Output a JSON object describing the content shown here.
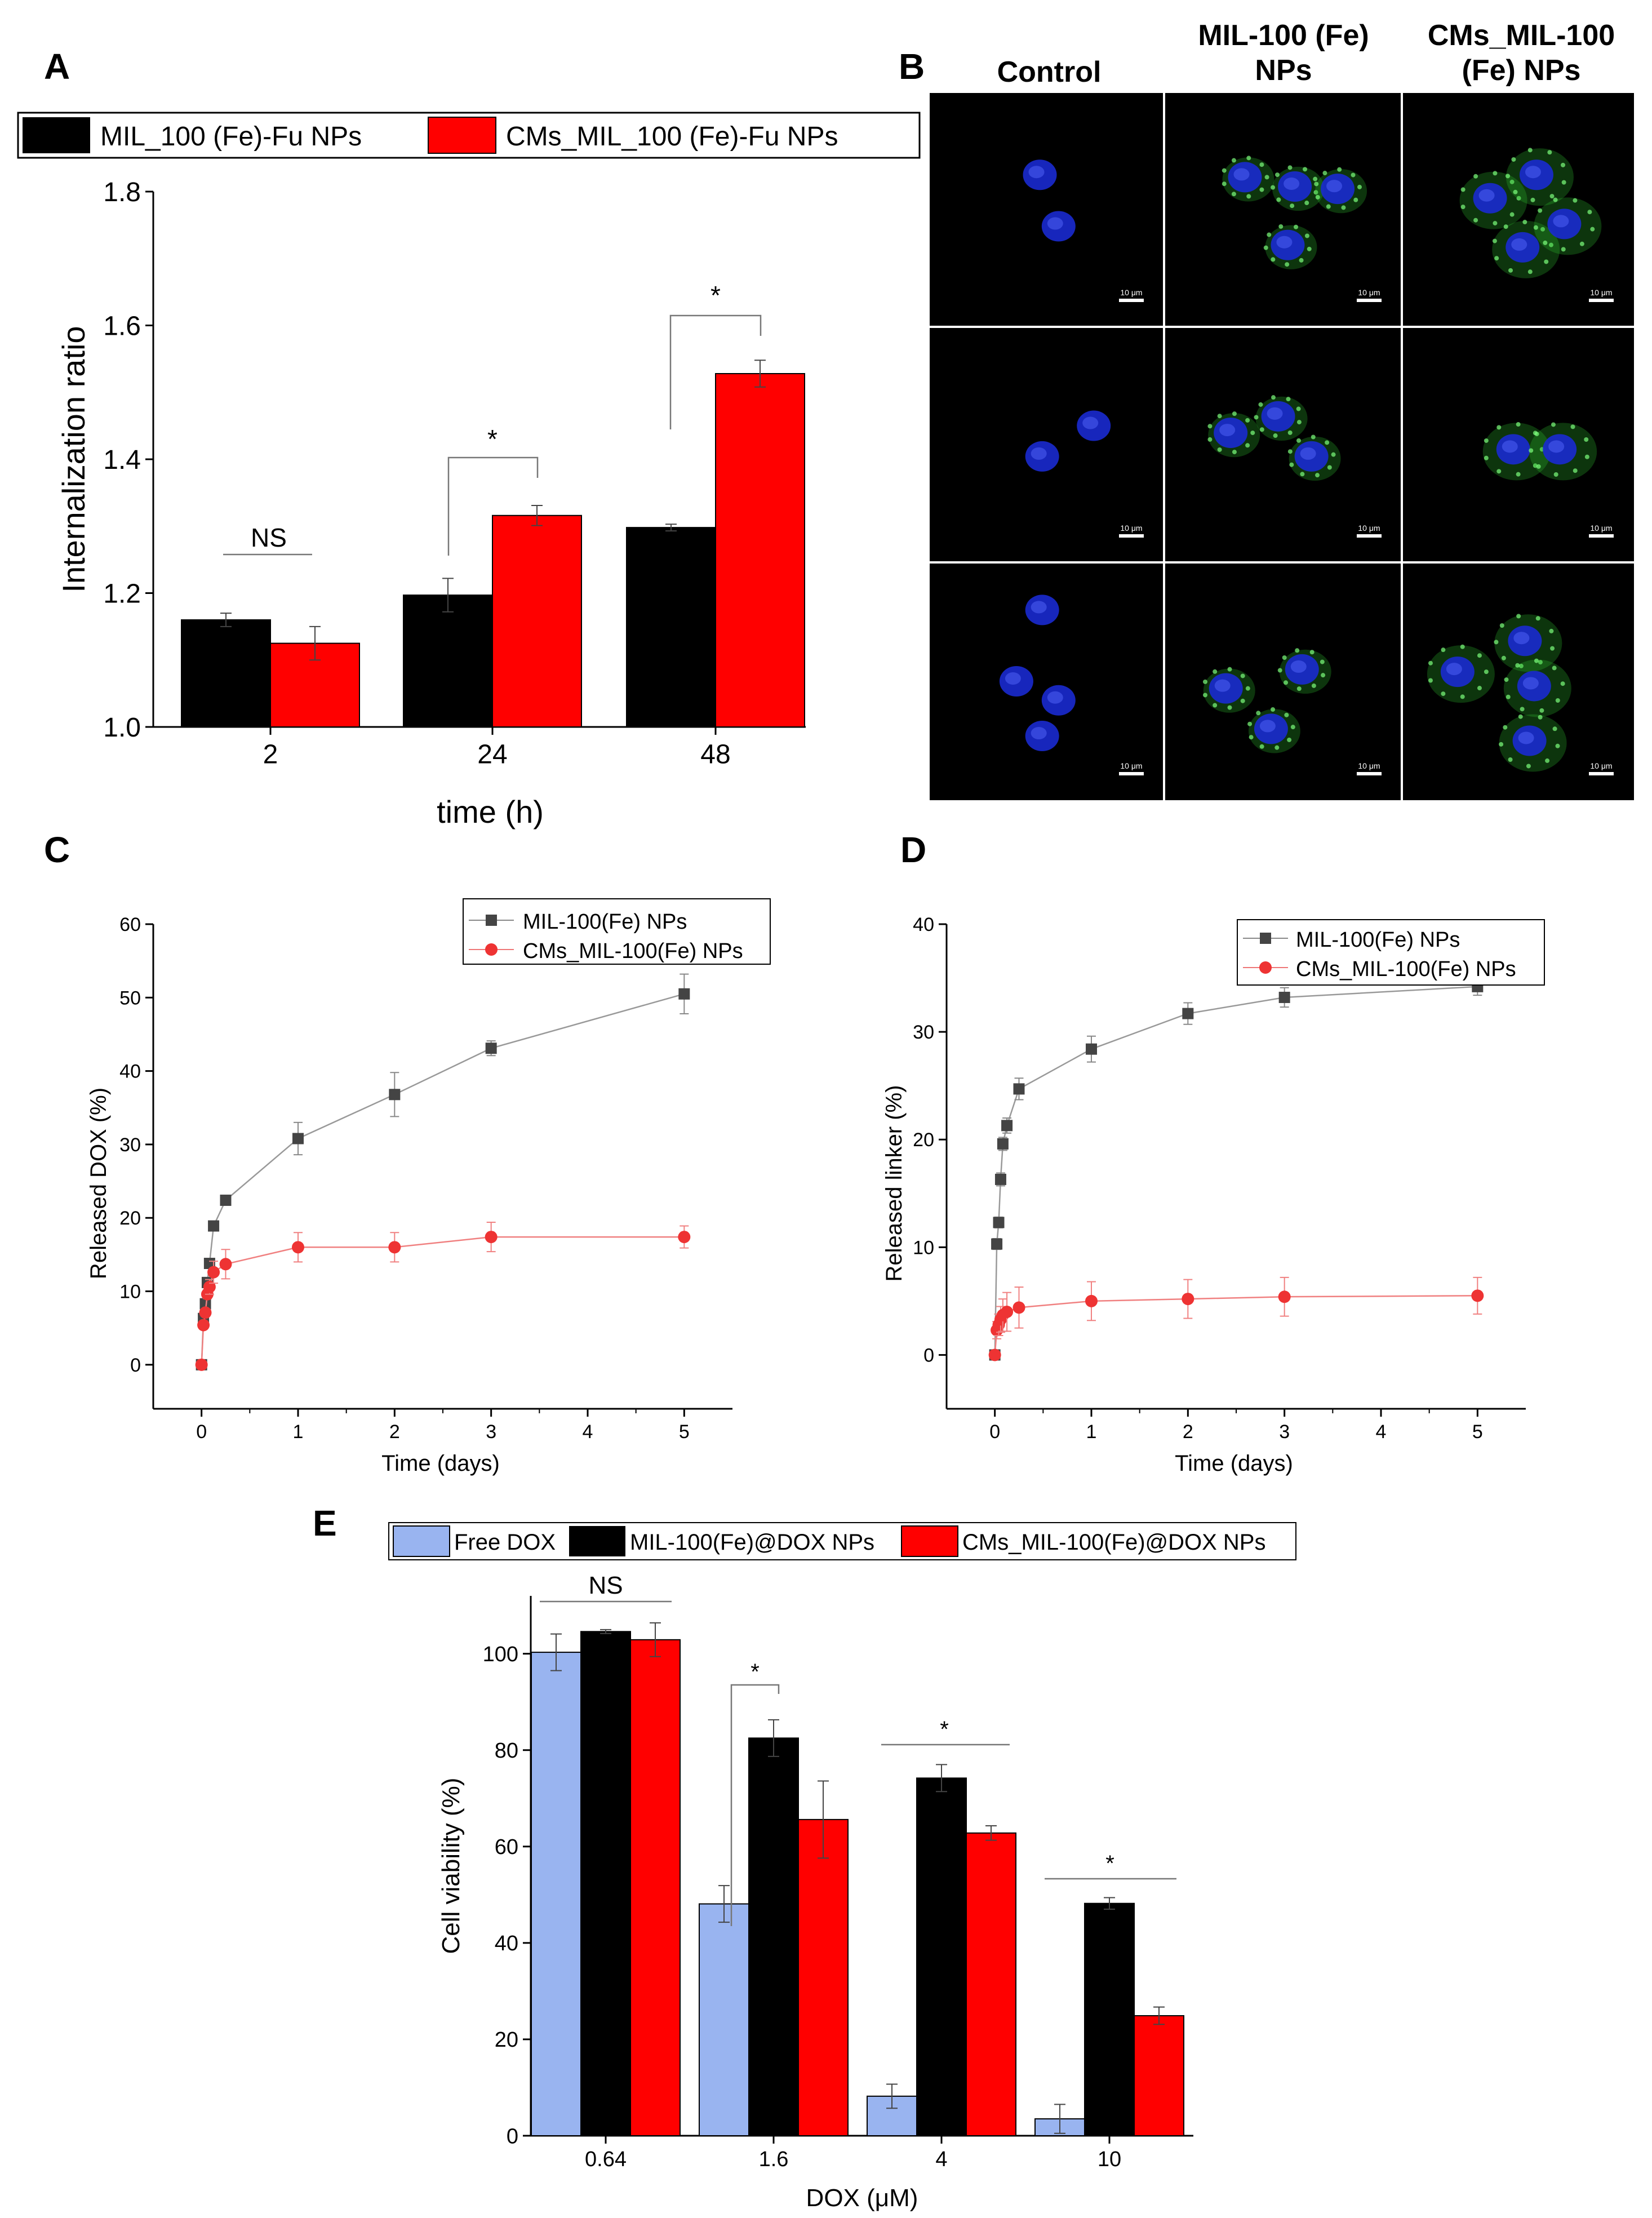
{
  "panels": {
    "a": {
      "letter": "A",
      "chart_data": {
        "type": "bar",
        "title": "",
        "xlabel": "time (h)",
        "ylabel": "Internalization ratio",
        "ylim": [
          1.0,
          1.8
        ],
        "yticks": [
          "1.0",
          "1.2",
          "1.4",
          "1.6",
          "1.8"
        ],
        "categories": [
          "2",
          "24",
          "48"
        ],
        "series": [
          {
            "name": "MIL_100 (Fe)-Fu NPs",
            "color": "#000000",
            "values": [
              1.16,
              1.197,
              1.298
            ],
            "errors": [
              0.01,
              0.025,
              0.005
            ]
          },
          {
            "name": "CMs_MIL_100 (Fe)-Fu NPs",
            "color": "#ff0000",
            "values": [
              1.125,
              1.316,
              1.528
            ],
            "errors": [
              0.025,
              0.015,
              0.02
            ]
          }
        ],
        "annotations": [
          "NS",
          "*",
          "*"
        ],
        "legend": "top"
      }
    },
    "b": {
      "letter": "B",
      "column_headers": [
        "Control",
        "MIL-100 (Fe)\nNPs",
        "CMs_MIL-100\n(Fe) NPs"
      ],
      "scale_bar_label": "10 μm",
      "nucleus_color": "#1a2ad0",
      "nanoparticle_color": "#2fbf2f"
    },
    "c": {
      "letter": "C",
      "chart_data": {
        "type": "line",
        "xlabel": "Time (days)",
        "ylabel": "Released DOX (%)",
        "xlim": [
          -0.5,
          5.5
        ],
        "ylim": [
          -6,
          60
        ],
        "xticks": [
          "0",
          "1",
          "2",
          "3",
          "4",
          "5"
        ],
        "yticks": [
          "0",
          "10",
          "20",
          "30",
          "40",
          "50",
          "60"
        ],
        "series": [
          {
            "name": "MIL-100(Fe) NPs",
            "color": "#444444",
            "marker": "square",
            "x": [
              0,
              0.02,
              0.04,
              0.06,
              0.083,
              0.125,
              0.25,
              1,
              2,
              3,
              5
            ],
            "y": [
              0,
              6.3,
              8.3,
              11.2,
              13.8,
              18.9,
              22.4,
              30.8,
              36.8,
              43.1,
              50.5
            ],
            "err": [
              0,
              0.3,
              0.3,
              0.4,
              0.4,
              0.5,
              0.5,
              2.2,
              3.0,
              1.0,
              2.7
            ]
          },
          {
            "name": "CMs_MIL-100(Fe) NPs",
            "color": "#ee3333",
            "marker": "circle",
            "x": [
              0,
              0.02,
              0.04,
              0.06,
              0.083,
              0.125,
              0.25,
              1,
              2,
              3,
              5
            ],
            "y": [
              0,
              5.4,
              7.1,
              9.6,
              10.6,
              12.6,
              13.7,
              16.0,
              16.0,
              17.4,
              17.4
            ],
            "err": [
              0,
              0.4,
              0.4,
              0.6,
              1.0,
              1.5,
              2.0,
              2.0,
              2.0,
              2.0,
              1.5
            ]
          }
        ],
        "legend": "top-right"
      }
    },
    "d": {
      "letter": "D",
      "chart_data": {
        "type": "line",
        "xlabel": "Time (days)",
        "ylabel": "Released linker (%)",
        "xlim": [
          -0.5,
          5.5
        ],
        "ylim": [
          -5,
          40
        ],
        "xticks": [
          "0",
          "1",
          "2",
          "3",
          "4",
          "5"
        ],
        "yticks": [
          "0",
          "10",
          "20",
          "30",
          "40"
        ],
        "series": [
          {
            "name": "MIL-100(Fe) NPs",
            "color": "#444444",
            "marker": "square",
            "x": [
              0,
              0.02,
              0.04,
              0.06,
              0.083,
              0.125,
              0.25,
              1,
              2,
              3,
              5
            ],
            "y": [
              0,
              10.3,
              12.3,
              16.3,
              19.6,
              21.3,
              24.7,
              28.4,
              31.7,
              33.2,
              34.2
            ],
            "err": [
              0,
              0.5,
              0.5,
              0.6,
              0.6,
              0.7,
              1.0,
              1.2,
              1.0,
              0.9,
              0.8
            ]
          },
          {
            "name": "CMs_MIL-100(Fe) NPs",
            "color": "#ee3333",
            "marker": "circle",
            "x": [
              0,
              0.02,
              0.04,
              0.06,
              0.083,
              0.125,
              0.25,
              1,
              2,
              3,
              5
            ],
            "y": [
              0,
              2.3,
              2.8,
              3.3,
              3.7,
              4.0,
              4.4,
              5.0,
              5.2,
              5.4,
              5.5
            ],
            "err": [
              0,
              0.8,
              1.0,
              1.2,
              1.5,
              1.8,
              1.9,
              1.8,
              1.8,
              1.8,
              1.7
            ]
          }
        ],
        "legend": "top-right"
      }
    },
    "e": {
      "letter": "E",
      "chart_data": {
        "type": "bar",
        "xlabel": "DOX (μM)",
        "ylabel": "Cell viability (%)",
        "ylim": [
          0,
          112
        ],
        "yticks": [
          "0",
          "20",
          "40",
          "60",
          "80",
          "100"
        ],
        "categories": [
          "0.64",
          "1.6",
          "4",
          "10"
        ],
        "series": [
          {
            "name": "Free DOX",
            "color": "#99b4f0",
            "values": [
              100.3,
              48.1,
              8.2,
              3.5
            ],
            "errors": [
              3.8,
              3.8,
              2.5,
              3.0
            ]
          },
          {
            "name": "MIL-100(Fe)@DOX NPs",
            "color": "#000000",
            "values": [
              104.6,
              82.5,
              74.2,
              48.2
            ],
            "errors": [
              0.4,
              3.8,
              2.8,
              1.2
            ]
          },
          {
            "name": "CMs_MIL-100(Fe)@DOX NPs",
            "color": "#ff0000",
            "values": [
              102.9,
              65.6,
              62.8,
              24.9
            ],
            "errors": [
              3.5,
              8.0,
              1.5,
              1.8
            ]
          }
        ],
        "annotations": [
          "NS",
          "*",
          "*",
          "*"
        ],
        "legend": "top"
      }
    }
  }
}
